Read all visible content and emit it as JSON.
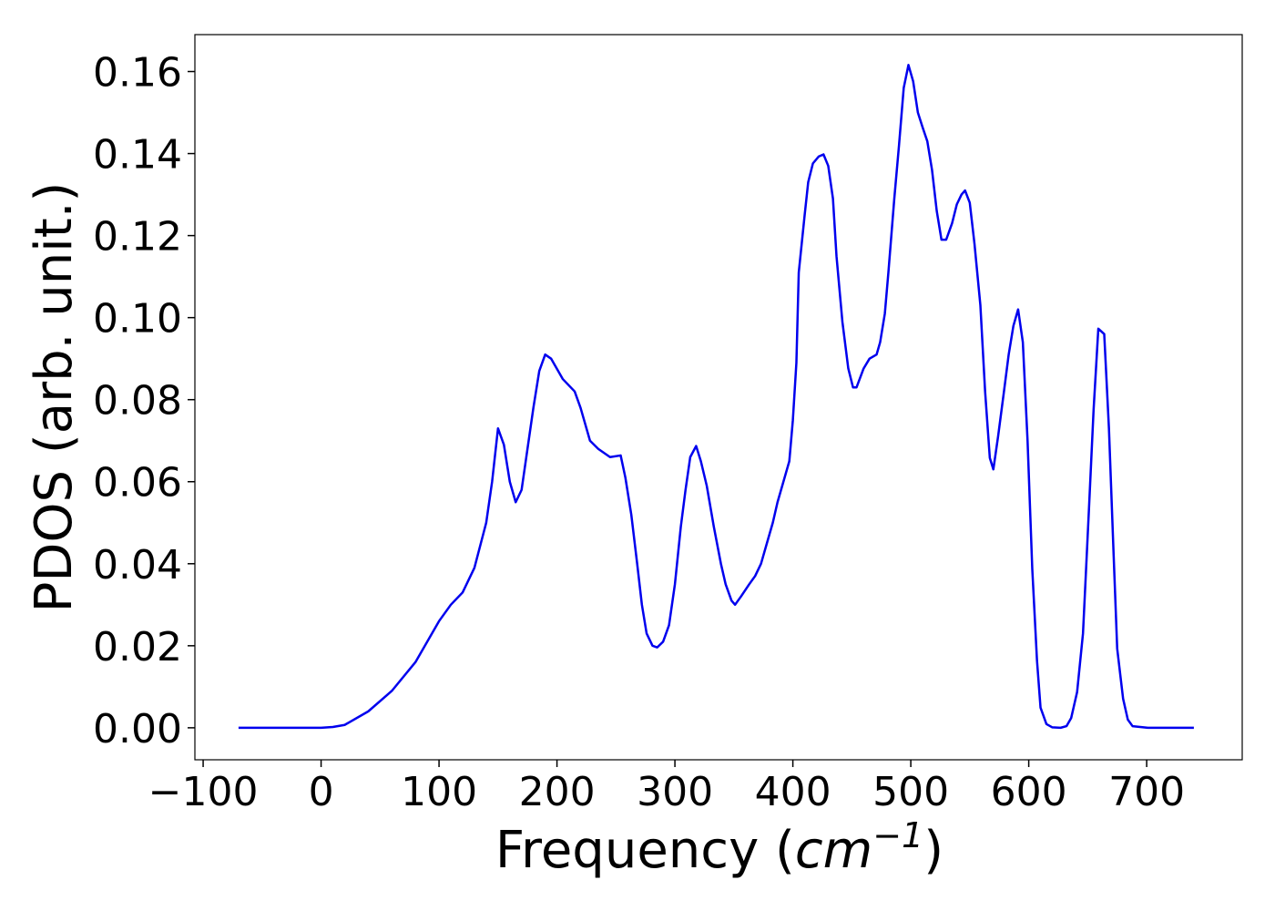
{
  "chart_data": {
    "type": "line",
    "xlabel": [
      "Frequency (",
      "cm",
      "−1",
      ")"
    ],
    "ylabel": "PDOS (arb. unit.)",
    "xlim": [
      -107,
      781
    ],
    "ylim": [
      -0.0078,
      0.169
    ],
    "xticks": [
      {
        "value": -100,
        "label": "−100"
      },
      0,
      100,
      200,
      300,
      400,
      500,
      600,
      700
    ],
    "yticks": [
      {
        "value": 0,
        "label": "0.00"
      },
      {
        "value": 0.02,
        "label": "0.02"
      },
      {
        "value": 0.04,
        "label": "0.04"
      },
      {
        "value": 0.06,
        "label": "0.06"
      },
      {
        "value": 0.08,
        "label": "0.08"
      },
      {
        "value": 0.1,
        "label": "0.10"
      },
      {
        "value": 0.12,
        "label": "0.12"
      },
      {
        "value": 0.14,
        "label": "0.14"
      },
      {
        "value": 0.16,
        "label": "0.16"
      }
    ],
    "grid": false,
    "x": [
      -70,
      -20,
      0,
      10,
      20,
      40,
      60,
      80,
      100,
      110,
      120,
      130,
      140,
      145,
      150,
      155,
      160,
      165,
      170,
      175,
      180,
      185,
      190,
      195,
      205,
      215,
      220,
      228,
      235,
      245,
      254,
      258,
      263,
      268,
      272,
      276,
      281,
      285,
      290,
      295,
      300,
      305,
      309,
      313,
      318,
      322,
      327,
      333,
      339,
      343,
      348,
      351,
      356,
      363,
      368,
      373,
      377,
      383,
      387,
      392,
      397,
      400,
      403,
      405,
      410,
      413,
      417,
      422,
      426,
      430,
      434,
      437,
      442,
      447,
      451,
      454,
      460,
      465,
      471,
      474,
      478,
      481,
      486,
      490,
      494,
      498,
      502,
      506,
      510,
      514,
      518,
      522,
      526,
      530,
      535,
      539,
      543,
      546,
      550,
      554,
      559,
      563,
      567,
      570,
      574,
      579,
      583,
      587,
      591,
      595,
      599,
      603,
      607,
      610,
      615,
      620,
      627,
      632,
      636,
      641,
      646,
      651,
      655,
      659,
      664,
      668,
      672,
      675,
      680,
      684,
      688,
      701,
      740
    ],
    "series": [
      {
        "name": "PDOS",
        "color": "#0000ee",
        "values": [
          0,
          0,
          0,
          0.0002,
          0.0007,
          0.004,
          0.009,
          0.016,
          0.026,
          0.03,
          0.033,
          0.039,
          0.05,
          0.06,
          0.073,
          0.069,
          0.06,
          0.055,
          0.058,
          0.068,
          0.078,
          0.087,
          0.091,
          0.09,
          0.085,
          0.082,
          0.078,
          0.07,
          0.068,
          0.066,
          0.0664,
          0.061,
          0.052,
          0.04,
          0.03,
          0.023,
          0.02,
          0.0196,
          0.021,
          0.025,
          0.035,
          0.049,
          0.058,
          0.066,
          0.0687,
          0.065,
          0.059,
          0.049,
          0.04,
          0.035,
          0.031,
          0.03,
          0.032,
          0.035,
          0.037,
          0.04,
          0.044,
          0.05,
          0.055,
          0.06,
          0.065,
          0.075,
          0.089,
          0.111,
          0.125,
          0.133,
          0.1376,
          0.1393,
          0.1398,
          0.137,
          0.129,
          0.115,
          0.099,
          0.0876,
          0.083,
          0.083,
          0.0876,
          0.09,
          0.091,
          0.094,
          0.101,
          0.111,
          0.129,
          0.142,
          0.156,
          0.1616,
          0.1576,
          0.15,
          0.1464,
          0.143,
          0.136,
          0.126,
          0.119,
          0.119,
          0.123,
          0.1276,
          0.13,
          0.131,
          0.128,
          0.118,
          0.103,
          0.082,
          0.0658,
          0.063,
          0.071,
          0.082,
          0.091,
          0.098,
          0.102,
          0.094,
          0.07,
          0.0387,
          0.0164,
          0.0049,
          0.0009,
          0.0001,
          0,
          0.0004,
          0.0024,
          0.0087,
          0.023,
          0.053,
          0.0776,
          0.0973,
          0.096,
          0.073,
          0.042,
          0.0193,
          0.0071,
          0.002,
          0.0004,
          0,
          0
        ]
      }
    ]
  }
}
